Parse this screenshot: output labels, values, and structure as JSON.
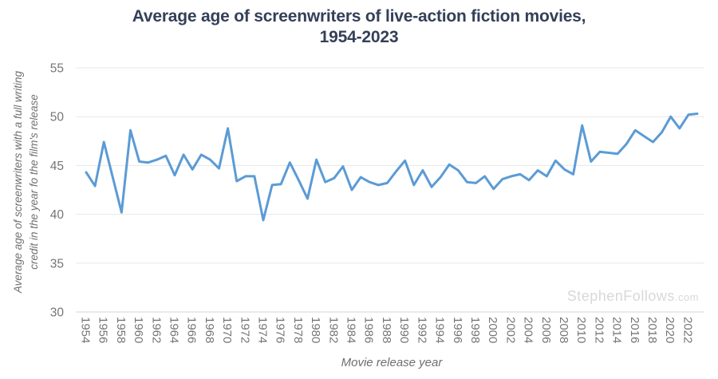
{
  "title": {
    "line1": "Average age of screenwriters of live-action fiction movies,",
    "line2": "1954-2023"
  },
  "watermark": {
    "main": "StephenFollows",
    "suffix": ".com"
  },
  "colors": {
    "line": "#5b9bd5",
    "title_text": "#344058",
    "tick_text": "#757575",
    "grid": "#e7e7e7",
    "axis_line": "#d4d4d4",
    "watermark": "#d8d8d8"
  },
  "chart_data": {
    "type": "line",
    "title": "Average age of screenwriters of live-action fiction movies, 1954-2023",
    "xlabel": "Movie release year",
    "ylabel": "Average age of screenwriters with a full writing credit in the year fo the film's release",
    "ylabel_lines": [
      "Average age of screenwriters with a full writing",
      "credit in the year fo the film's release"
    ],
    "ylim": [
      30,
      55
    ],
    "yticks": [
      30,
      35,
      40,
      45,
      50,
      55
    ],
    "xticks": [
      1954,
      1956,
      1958,
      1960,
      1962,
      1964,
      1966,
      1968,
      1970,
      1972,
      1974,
      1976,
      1978,
      1980,
      1982,
      1984,
      1986,
      1988,
      1990,
      1992,
      1994,
      1996,
      1998,
      2000,
      2002,
      2004,
      2006,
      2008,
      2010,
      2012,
      2014,
      2016,
      2018,
      2020,
      2022
    ],
    "grid": "horizontal-only",
    "legend": "none",
    "series": [
      {
        "name": "Average age of screenwriters",
        "x": [
          1954,
          1955,
          1956,
          1957,
          1958,
          1959,
          1960,
          1961,
          1962,
          1963,
          1964,
          1965,
          1966,
          1967,
          1968,
          1969,
          1970,
          1971,
          1972,
          1973,
          1974,
          1975,
          1976,
          1977,
          1978,
          1979,
          1980,
          1981,
          1982,
          1983,
          1984,
          1985,
          1986,
          1987,
          1988,
          1989,
          1990,
          1991,
          1992,
          1993,
          1994,
          1995,
          1996,
          1997,
          1998,
          1999,
          2000,
          2001,
          2002,
          2003,
          2004,
          2005,
          2006,
          2007,
          2008,
          2009,
          2010,
          2011,
          2012,
          2013,
          2014,
          2015,
          2016,
          2017,
          2018,
          2019,
          2020,
          2021,
          2022,
          2023
        ],
        "values": [
          44.3,
          42.9,
          47.4,
          43.8,
          40.2,
          48.6,
          45.4,
          45.3,
          45.6,
          46.0,
          44.0,
          46.1,
          44.6,
          46.1,
          45.6,
          44.7,
          48.8,
          43.4,
          43.9,
          43.9,
          39.4,
          43.0,
          43.1,
          45.3,
          43.5,
          41.6,
          45.6,
          43.3,
          43.7,
          44.9,
          42.5,
          43.8,
          43.3,
          43.0,
          43.2,
          44.4,
          45.5,
          43.0,
          44.5,
          42.8,
          43.8,
          45.1,
          44.5,
          43.3,
          43.2,
          43.9,
          42.6,
          43.6,
          43.9,
          44.1,
          43.5,
          44.5,
          43.9,
          45.5,
          44.6,
          44.1,
          49.1,
          45.4,
          46.4,
          46.3,
          46.2,
          47.2,
          48.6,
          48.0,
          47.4,
          48.4,
          50.0,
          48.8,
          50.2,
          50.3
        ]
      }
    ]
  }
}
